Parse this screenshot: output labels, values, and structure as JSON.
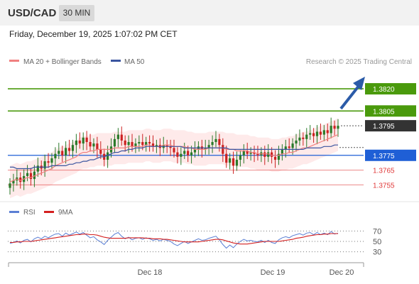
{
  "header": {
    "symbol": "USD/CAD",
    "timeframe": "30 MIN"
  },
  "datetime": "Friday, December 19, 2025 1:07:02 PM CET",
  "legend": {
    "ma20": "MA 20 + Bollinger Bands",
    "ma50": "MA 50",
    "rsi": "RSI",
    "rsi_ma": "9MA"
  },
  "credit": "Research © 2025 Trading Central",
  "colors": {
    "up": "#2a7a2a",
    "down": "#cc2222",
    "ma20": "#f08080",
    "ma50": "#3a55a0",
    "band": "#fde3e3",
    "target": "#4a9a0c",
    "pivot": "#1f5fd6",
    "support": "#e03a3a",
    "current": "#333333",
    "arrow": "#2b5ba8"
  },
  "chart_data": {
    "type": "candlestick",
    "x_labels": [
      "Dec 18",
      "Dec 19",
      "Dec 20"
    ],
    "price_levels": [
      {
        "value": "1.3820",
        "kind": "target"
      },
      {
        "value": "1.3805",
        "kind": "target"
      },
      {
        "value": "1.3795",
        "kind": "current"
      },
      {
        "value": "1.3775",
        "kind": "pivot"
      },
      {
        "value": "1.3765",
        "kind": "support"
      },
      {
        "value": "1.3755",
        "kind": "support"
      }
    ],
    "ylim": [
      1.3748,
      1.3833
    ],
    "closes": [
      1.3756,
      1.3758,
      1.376,
      1.3757,
      1.3761,
      1.3763,
      1.3759,
      1.3764,
      1.3768,
      1.3766,
      1.3771,
      1.377,
      1.3773,
      1.3776,
      1.3778,
      1.3775,
      1.378,
      1.3778,
      1.3782,
      1.3785,
      1.3783,
      1.3787,
      1.3784,
      1.3781,
      1.3783,
      1.3779,
      1.3776,
      1.3772,
      1.3777,
      1.3781,
      1.3786,
      1.3789,
      1.3785,
      1.3782,
      1.3784,
      1.3781,
      1.3783,
      1.3784,
      1.3782,
      1.3784,
      1.3783,
      1.3781,
      1.3782,
      1.378,
      1.3782,
      1.3781,
      1.378,
      1.3777,
      1.3774,
      1.3776,
      1.3778,
      1.3775,
      1.3777,
      1.3779,
      1.3781,
      1.3779,
      1.378,
      1.3782,
      1.3784,
      1.3786,
      1.3782,
      1.3776,
      1.377,
      1.3773,
      1.3768,
      1.3772,
      1.3775,
      1.3778,
      1.3776,
      1.3777,
      1.3776,
      1.3775,
      1.3777,
      1.3774,
      1.3777,
      1.3774,
      1.3772,
      1.3776,
      1.3779,
      1.3781,
      1.378,
      1.3783,
      1.3785,
      1.3787,
      1.3786,
      1.3789,
      1.379,
      1.3788,
      1.3791,
      1.3789,
      1.3792,
      1.379,
      1.3795,
      1.3793,
      1.3795
    ],
    "ma20": [
      1.3757,
      1.3758,
      1.3759,
      1.3758,
      1.3759,
      1.376,
      1.376,
      1.3761,
      1.3762,
      1.3763,
      1.3764,
      1.3765,
      1.3766,
      1.3768,
      1.3769,
      1.377,
      1.3771,
      1.3772,
      1.3773,
      1.3774,
      1.3776,
      1.3777,
      1.3777,
      1.3778,
      1.3778,
      1.3779,
      1.3779,
      1.3779,
      1.3779,
      1.3779,
      1.378,
      1.378,
      1.378,
      1.378,
      1.3781,
      1.3781,
      1.3781,
      1.3781,
      1.3781,
      1.3782,
      1.3782,
      1.3781,
      1.3781,
      1.3781,
      1.3782,
      1.3782,
      1.3782,
      1.3781,
      1.3781,
      1.3781,
      1.3781,
      1.378,
      1.378,
      1.3779,
      1.3779,
      1.3779,
      1.3779,
      1.378,
      1.378,
      1.378,
      1.378,
      1.378,
      1.3779,
      1.3779,
      1.3779,
      1.3778,
      1.3778,
      1.3778,
      1.3778,
      1.3777,
      1.3777,
      1.3776,
      1.3776,
      1.3776,
      1.3776,
      1.3775,
      1.3775,
      1.3775,
      1.3776,
      1.3776,
      1.3777,
      1.3777,
      1.3778,
      1.3779,
      1.378,
      1.378,
      1.3781,
      1.3782,
      1.3783,
      1.3784,
      1.3785,
      1.3786,
      1.3787,
      1.3788,
      1.3789
    ],
    "ma50": [
      1.3767,
      1.3767,
      1.3766,
      1.3766,
      1.3766,
      1.3766,
      1.3766,
      1.3767,
      1.3767,
      1.3767,
      1.3767,
      1.3767,
      1.3768,
      1.3768,
      1.3768,
      1.3768,
      1.3768,
      1.3769,
      1.3769,
      1.377,
      1.377,
      1.3771,
      1.3771,
      1.3772,
      1.3772,
      1.3773,
      1.3774,
      1.3774,
      1.3775,
      1.3776,
      1.3777,
      1.3777,
      1.3778,
      1.3778,
      1.3779,
      1.3779,
      1.378,
      1.378,
      1.378,
      1.3781,
      1.3781,
      1.3781,
      1.3781,
      1.3781,
      1.3781,
      1.3781,
      1.3781,
      1.3781,
      1.3781,
      1.3781,
      1.378,
      1.378,
      1.378,
      1.378,
      1.378,
      1.378,
      1.378,
      1.378,
      1.378,
      1.378,
      1.378,
      1.378,
      1.378,
      1.3779,
      1.3779,
      1.3779,
      1.3779,
      1.3779,
      1.3779,
      1.3779,
      1.3779,
      1.3779,
      1.3779,
      1.3779,
      1.3779,
      1.3779,
      1.3779,
      1.3779,
      1.3779,
      1.3779,
      1.3779,
      1.3779,
      1.3779,
      1.3779,
      1.3779,
      1.378,
      1.378,
      1.378,
      1.378,
      1.378,
      1.3781,
      1.3781,
      1.3781,
      1.3782,
      1.3782
    ],
    "rsi": {
      "levels": [
        "70",
        "50",
        "30"
      ],
      "ylim": [
        20,
        80
      ],
      "rsi": [
        46,
        48,
        51,
        47,
        52,
        54,
        49,
        55,
        58,
        55,
        60,
        57,
        61,
        64,
        65,
        60,
        66,
        62,
        65,
        68,
        64,
        67,
        62,
        57,
        59,
        53,
        49,
        44,
        52,
        58,
        64,
        67,
        60,
        55,
        58,
        53,
        56,
        57,
        54,
        57,
        55,
        52,
        54,
        51,
        54,
        52,
        50,
        45,
        42,
        46,
        50,
        46,
        49,
        52,
        55,
        52,
        53,
        56,
        58,
        60,
        53,
        44,
        37,
        43,
        38,
        45,
        50,
        54,
        51,
        52,
        50,
        49,
        52,
        48,
        52,
        48,
        46,
        53,
        57,
        59,
        57,
        61,
        63,
        65,
        62,
        66,
        67,
        63,
        67,
        63,
        66,
        63,
        69,
        64,
        66
      ],
      "ma": [
        48,
        48,
        49,
        49,
        50,
        50,
        50,
        51,
        52,
        53,
        54,
        55,
        56,
        57,
        58,
        59,
        60,
        61,
        62,
        63,
        63,
        64,
        64,
        63,
        63,
        62,
        60,
        58,
        57,
        56,
        56,
        56,
        56,
        56,
        57,
        57,
        57,
        57,
        57,
        56,
        56,
        55,
        55,
        55,
        54,
        54,
        53,
        52,
        51,
        50,
        49,
        49,
        49,
        49,
        49,
        50,
        51,
        52,
        53,
        54,
        54,
        53,
        51,
        49,
        47,
        46,
        45,
        45,
        45,
        46,
        47,
        48,
        49,
        50,
        50,
        50,
        50,
        50,
        51,
        52,
        53,
        54,
        56,
        57,
        58,
        60,
        61,
        62,
        63,
        63,
        64,
        64,
        65,
        65,
        65
      ]
    }
  }
}
